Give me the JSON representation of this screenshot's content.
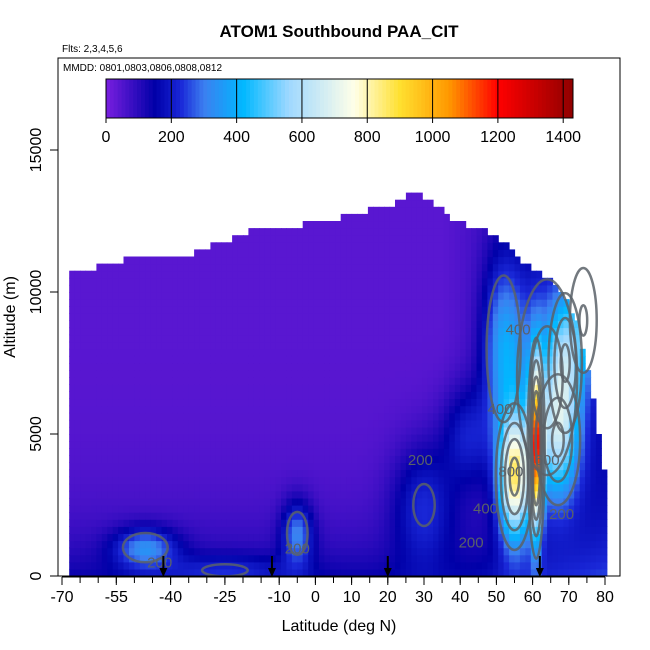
{
  "chart_data": {
    "type": "heatmap",
    "title": "ATOM1 Southbound PAA_CIT",
    "subtitle_flights": "Flts: 2,3,4,5,6",
    "subtitle_dates": "MMDD: 0801,0803,0806,0808,0812",
    "xlabel": "Latitude (deg N)",
    "ylabel": "Altitude (m)",
    "xlim": [
      -70,
      80
    ],
    "ylim": [
      0,
      17500
    ],
    "x_ticks": [
      -70,
      -55,
      -40,
      -25,
      -10,
      0,
      10,
      20,
      30,
      40,
      50,
      60,
      70,
      80
    ],
    "x_tick_labels": [
      "-70",
      "-55",
      "-40",
      "-25",
      "-10",
      "0",
      "10",
      "20",
      "30",
      "40",
      "50",
      "60",
      "70",
      "80"
    ],
    "y_ticks": [
      0,
      5000,
      10000,
      15000
    ],
    "y_tick_labels": [
      "0",
      "5000",
      "10000",
      "15000"
    ],
    "colorbar": {
      "range": [
        0,
        1430
      ],
      "tick_values": [
        0,
        200,
        400,
        600,
        800,
        1000,
        1200,
        1400
      ],
      "tick_labels": [
        "0",
        "200",
        "400",
        "600",
        "800",
        "1000",
        "1200",
        "1400"
      ],
      "stops": [
        {
          "v": 0,
          "c": "#7a1fe0"
        },
        {
          "v": 150,
          "c": "#0000a8"
        },
        {
          "v": 230,
          "c": "#1a28d8"
        },
        {
          "v": 300,
          "c": "#3c7ff0"
        },
        {
          "v": 420,
          "c": "#00b8ff"
        },
        {
          "v": 560,
          "c": "#9fd8ff"
        },
        {
          "v": 760,
          "c": "#ffffe8"
        },
        {
          "v": 900,
          "c": "#ffe030"
        },
        {
          "v": 1050,
          "c": "#ff9800"
        },
        {
          "v": 1200,
          "c": "#ff0000"
        },
        {
          "v": 1430,
          "c": "#900000"
        }
      ]
    },
    "curtain_top_altitude": [
      {
        "lat": -68,
        "alt": 10500
      },
      {
        "lat": -53,
        "alt": 11000
      },
      {
        "lat": -35,
        "alt": 11200
      },
      {
        "lat": -18,
        "alt": 12000
      },
      {
        "lat": 0,
        "alt": 12300
      },
      {
        "lat": 10,
        "alt": 12600
      },
      {
        "lat": 22,
        "alt": 13000
      },
      {
        "lat": 27,
        "alt": 13500
      },
      {
        "lat": 32,
        "alt": 13000
      },
      {
        "lat": 40,
        "alt": 12300
      },
      {
        "lat": 50,
        "alt": 11900
      },
      {
        "lat": 57,
        "alt": 11000
      },
      {
        "lat": 65,
        "alt": 10300
      },
      {
        "lat": 72,
        "alt": 9000
      },
      {
        "lat": 77,
        "alt": 6000
      },
      {
        "lat": 80,
        "alt": 3500
      }
    ],
    "field_features": [
      {
        "lat": -47,
        "alt": 1000,
        "slat": 6,
        "salt": 500,
        "value": 240
      },
      {
        "lat": -25,
        "alt": 200,
        "slat": 12,
        "salt": 400,
        "value": 100
      },
      {
        "lat": -5,
        "alt": 1500,
        "slat": 3,
        "salt": 800,
        "value": 230
      },
      {
        "lat": 30,
        "alt": 2500,
        "slat": 6,
        "salt": 1500,
        "value": 160
      },
      {
        "lat": 42,
        "alt": 5000,
        "slat": 5,
        "salt": 1200,
        "value": 140
      },
      {
        "lat": 52,
        "alt": 8000,
        "slat": 4,
        "salt": 2200,
        "value": 280
      },
      {
        "lat": 55,
        "alt": 3500,
        "slat": 3,
        "salt": 1500,
        "value": 720
      },
      {
        "lat": 61,
        "alt": 4500,
        "slat": 1.2,
        "salt": 2000,
        "value": 900
      },
      {
        "lat": 64,
        "alt": 7000,
        "slat": 6,
        "salt": 2500,
        "value": 230
      },
      {
        "lat": 67,
        "alt": 4800,
        "slat": 4,
        "salt": 1500,
        "value": 330
      },
      {
        "lat": 69,
        "alt": 7500,
        "slat": 3,
        "salt": 1600,
        "value": 280
      },
      {
        "lat": 74,
        "alt": 9000,
        "slat": 3,
        "salt": 1500,
        "value": 200
      }
    ],
    "contour_labels": [
      {
        "text": "200",
        "lat": -43,
        "alt": 300
      },
      {
        "text": "200",
        "lat": -5,
        "alt": 800
      },
      {
        "text": "200",
        "lat": 29,
        "alt": 3900
      },
      {
        "text": "200",
        "lat": 43,
        "alt": 1000
      },
      {
        "text": "200",
        "lat": 68,
        "alt": 2000
      },
      {
        "text": "400",
        "lat": 51,
        "alt": 5700
      },
      {
        "text": "400",
        "lat": 56,
        "alt": 8500
      },
      {
        "text": "400",
        "lat": 47,
        "alt": 2200
      },
      {
        "text": "800",
        "lat": 54,
        "alt": 3500
      },
      {
        "text": "600",
        "lat": 64,
        "alt": 3900
      }
    ],
    "flight_markers_lat": [
      -42,
      -12,
      20,
      62
    ],
    "contour_color": "#5a6168"
  }
}
